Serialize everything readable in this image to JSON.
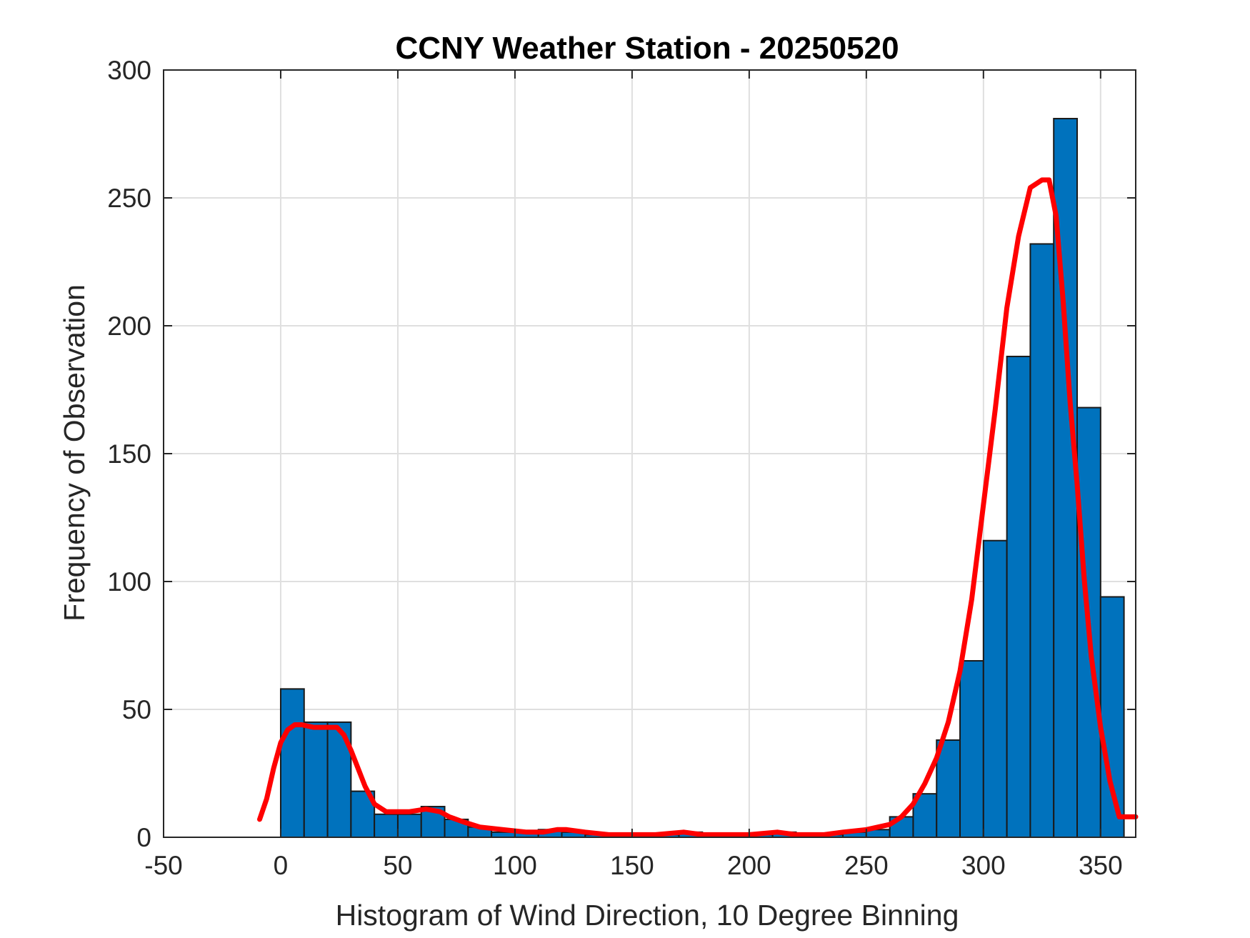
{
  "chart_data": {
    "type": "bar",
    "title": "CCNY Weather Station - 20250520",
    "xlabel": "Histogram of Wind Direction, 10 Degree Binning",
    "ylabel": "Frequency of Observation",
    "xlim": [
      -50,
      365
    ],
    "ylim": [
      0,
      300
    ],
    "xticks": [
      -50,
      0,
      50,
      100,
      150,
      200,
      250,
      300,
      350
    ],
    "yticks": [
      0,
      50,
      100,
      150,
      200,
      250,
      300
    ],
    "grid": true,
    "bin_width": 10,
    "bins": [
      {
        "start": 0,
        "value": 58
      },
      {
        "start": 10,
        "value": 45
      },
      {
        "start": 20,
        "value": 45
      },
      {
        "start": 30,
        "value": 18
      },
      {
        "start": 40,
        "value": 9
      },
      {
        "start": 50,
        "value": 9
      },
      {
        "start": 60,
        "value": 12
      },
      {
        "start": 70,
        "value": 7
      },
      {
        "start": 80,
        "value": 4
      },
      {
        "start": 90,
        "value": 2
      },
      {
        "start": 100,
        "value": 2
      },
      {
        "start": 110,
        "value": 3
      },
      {
        "start": 120,
        "value": 2
      },
      {
        "start": 130,
        "value": 1
      },
      {
        "start": 140,
        "value": 1
      },
      {
        "start": 150,
        "value": 1
      },
      {
        "start": 160,
        "value": 1
      },
      {
        "start": 170,
        "value": 2
      },
      {
        "start": 180,
        "value": 1
      },
      {
        "start": 190,
        "value": 1
      },
      {
        "start": 200,
        "value": 1
      },
      {
        "start": 210,
        "value": 2
      },
      {
        "start": 220,
        "value": 1
      },
      {
        "start": 230,
        "value": 1
      },
      {
        "start": 240,
        "value": 2
      },
      {
        "start": 250,
        "value": 3
      },
      {
        "start": 260,
        "value": 8
      },
      {
        "start": 270,
        "value": 17
      },
      {
        "start": 280,
        "value": 38
      },
      {
        "start": 290,
        "value": 69
      },
      {
        "start": 300,
        "value": 116
      },
      {
        "start": 310,
        "value": 188
      },
      {
        "start": 320,
        "value": 232
      },
      {
        "start": 330,
        "value": 281
      },
      {
        "start": 340,
        "value": 168
      },
      {
        "start": 350,
        "value": 94
      }
    ],
    "fit_curve": {
      "color": "#ff0000",
      "x": [
        -9,
        -6,
        -3,
        0,
        3,
        6,
        9,
        14,
        19,
        24,
        27,
        30,
        33,
        36,
        40,
        45,
        50,
        55,
        62,
        68,
        72,
        78,
        85,
        95,
        105,
        112,
        118,
        122,
        130,
        140,
        150,
        160,
        172,
        180,
        190,
        200,
        212,
        220,
        226,
        232,
        240,
        250,
        255,
        260,
        265,
        270,
        275,
        280,
        285,
        290,
        295,
        300,
        305,
        310,
        315,
        320,
        325,
        328,
        331,
        334,
        337,
        340,
        343,
        346,
        350,
        354,
        358,
        361,
        365
      ],
      "y": [
        7,
        15,
        27,
        37,
        42,
        44,
        44,
        43,
        43,
        43,
        40,
        34,
        27,
        20,
        13,
        10,
        10,
        10,
        11,
        10,
        8,
        6,
        4,
        3,
        2,
        2,
        3,
        3,
        2,
        1,
        1,
        1,
        2,
        1,
        1,
        1,
        2,
        1,
        1,
        1,
        2,
        3,
        4,
        5,
        8,
        13,
        21,
        31,
        45,
        65,
        93,
        130,
        167,
        207,
        235,
        254,
        257,
        257,
        243,
        210,
        170,
        138,
        101,
        71,
        43,
        22,
        8,
        8,
        8
      ]
    }
  }
}
